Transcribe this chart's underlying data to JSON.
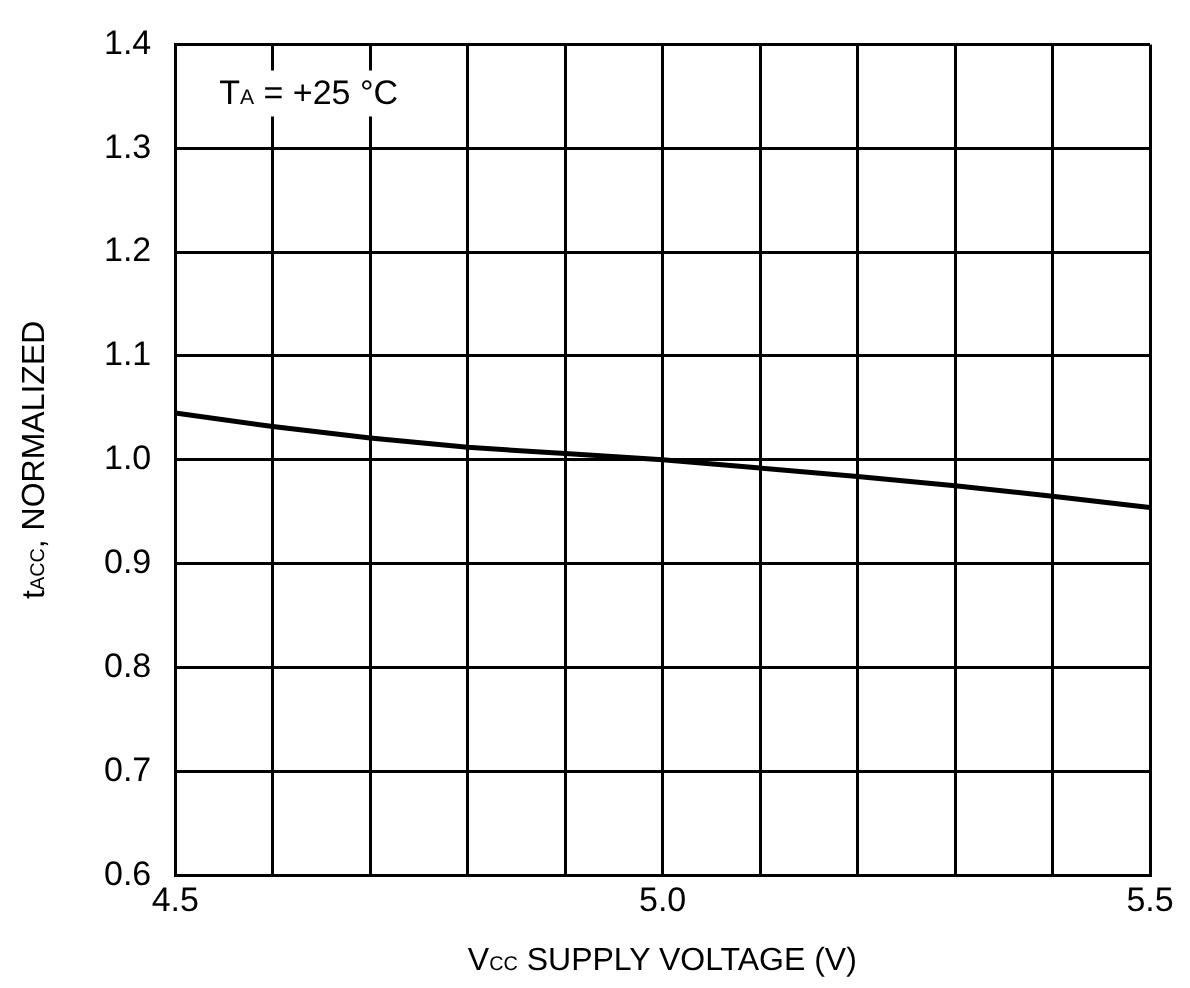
{
  "chart_data": {
    "type": "line",
    "xlabel": "V$_{CC}$ SUPPLY VOLTAGE (V)",
    "ylabel": "t$_{ACC}$, NORMALIZED",
    "annotations": [
      "T$_{A}$ = +25 °C"
    ],
    "x": [
      4.5,
      4.6,
      4.7,
      4.8,
      4.9,
      5.0,
      5.1,
      5.2,
      5.3,
      5.4,
      5.5
    ],
    "series": [
      {
        "color": "#000000",
        "values": [
          1.045,
          1.032,
          1.021,
          1.012,
          1.006,
          1.0,
          0.992,
          0.984,
          0.975,
          0.965,
          0.954
        ]
      }
    ],
    "xlim": [
      4.5,
      5.5
    ],
    "xticks": [
      4.5,
      {
        "value": 4.6,
        "label": null
      },
      {
        "value": 4.7,
        "label": null
      },
      {
        "value": 4.8,
        "label": null
      },
      {
        "value": 4.9,
        "label": null
      },
      {
        "value": 5.0,
        "label": "5.0"
      },
      {
        "value": 5.1,
        "label": null
      },
      {
        "value": 5.2,
        "label": null
      },
      {
        "value": 5.3,
        "label": null
      },
      {
        "value": 5.4,
        "label": null
      },
      5.5
    ],
    "ylim": [
      0.6,
      1.4
    ],
    "yticks": [
      {
        "value": 0.6,
        "label": "0.6"
      },
      {
        "value": 0.7,
        "label": "0.7"
      },
      {
        "value": 0.8,
        "label": "0.8"
      },
      {
        "value": 0.9,
        "label": "0.9"
      },
      {
        "value": 1.0,
        "label": "1.0"
      },
      {
        "value": 1.1,
        "label": "1.1"
      },
      {
        "value": 1.2,
        "label": "1.2"
      },
      {
        "value": 1.3,
        "label": "1.3"
      },
      {
        "value": 1.4,
        "label": "1.4"
      }
    ],
    "grid": true,
    "legend": false,
    "marker": "none",
    "line_style": "solid"
  }
}
